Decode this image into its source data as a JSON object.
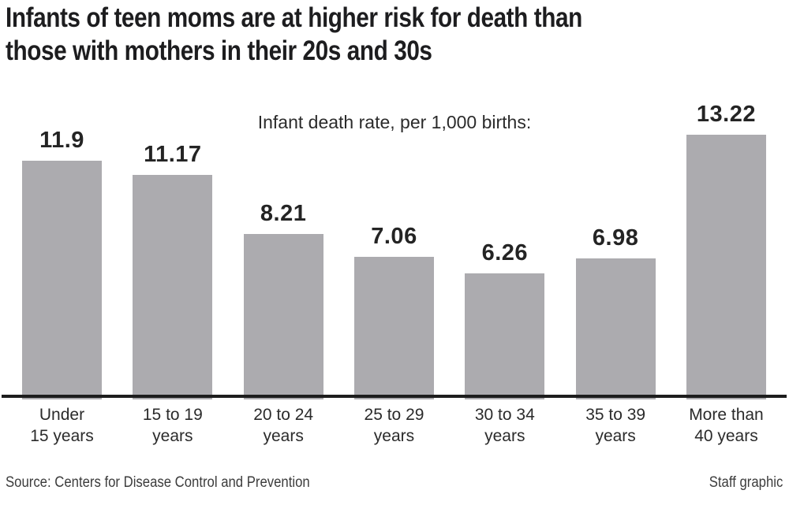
{
  "header": {
    "title_lines": [
      "Infants of teen moms are at higher risk for death than",
      "those with mothers in their 20s and 30s"
    ]
  },
  "chart_data": {
    "type": "bar",
    "title": "Infants of teen moms are at higher risk for death than those with mothers in their 20s and 30s",
    "subtitle": "Infant death rate, per 1,000 births:",
    "categories": [
      "Under\n15 years",
      "15 to 19\nyears",
      "20 to 24\nyears",
      "25 to 29\nyears",
      "30 to 34\nyears",
      "35 to 39\nyears",
      "More than\n40 years"
    ],
    "values": [
      11.9,
      11.17,
      8.21,
      7.06,
      6.26,
      6.98,
      13.22
    ],
    "value_labels": [
      "11.9",
      "11.17",
      "8.21",
      "7.06",
      "6.26",
      "6.98",
      "13.22"
    ],
    "xlabel": "",
    "ylabel": "Infant death rate, per 1,000 births",
    "ylim": [
      0,
      14
    ],
    "grid": false,
    "legend": false,
    "bar_color": "#acabaf",
    "axis_line_color": "#1d1d1d",
    "value_label_color": "#242424"
  },
  "footer": {
    "source": "Source: Centers for Disease Control and Prevention",
    "credit": "Staff graphic"
  }
}
